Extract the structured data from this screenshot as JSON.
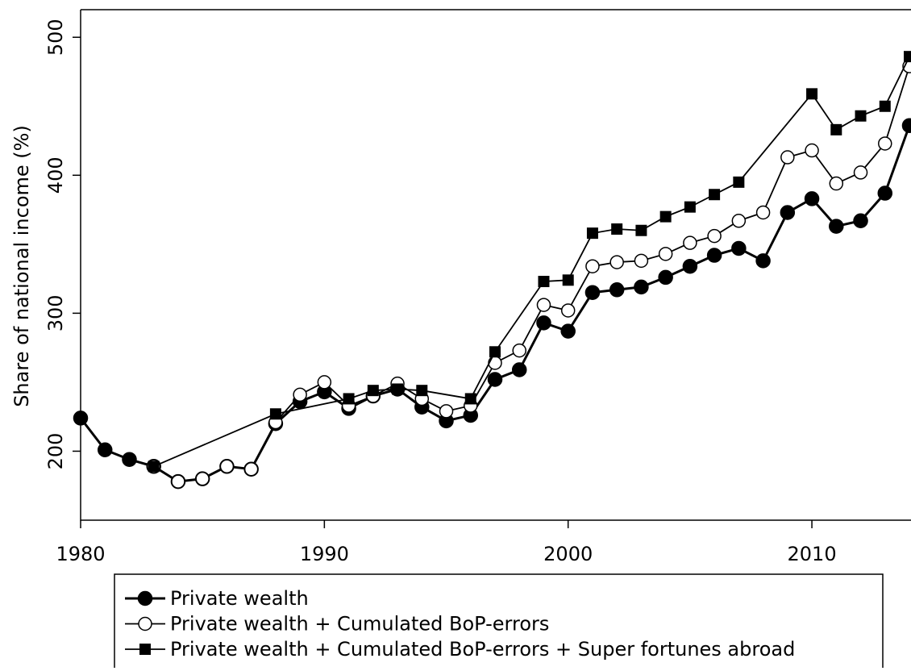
{
  "chart_data": {
    "type": "line",
    "y_label": "Share of national income (%)",
    "xlim": [
      1980,
      2014
    ],
    "xticks": [
      1980,
      1990,
      2000,
      2010
    ],
    "ylim": [
      150,
      520
    ],
    "yticks": [
      200,
      300,
      400,
      500
    ],
    "series": [
      {
        "name": "Private wealth",
        "color": "#000000",
        "marker": "filled-circle",
        "x": [
          1980,
          1981,
          1982,
          1983,
          1984,
          1985,
          1986,
          1987,
          1988,
          1989,
          1990,
          1991,
          1992,
          1993,
          1994,
          1995,
          1996,
          1997,
          1998,
          1999,
          2000,
          2001,
          2002,
          2003,
          2004,
          2005,
          2006,
          2007,
          2008,
          2009,
          2010,
          2011,
          2012,
          2013,
          2014
        ],
        "values": [
          224,
          201,
          194,
          189,
          178,
          180,
          189,
          187,
          220,
          236,
          243,
          231,
          240,
          245,
          232,
          222,
          226,
          252,
          259,
          293,
          287,
          315,
          317,
          319,
          326,
          334,
          342,
          347,
          338,
          373,
          383,
          363,
          367,
          387,
          436
        ]
      },
      {
        "name": "Private wealth + Cumulated BoP-errors",
        "color": "#000000",
        "marker": "open-circle",
        "x": [
          1983,
          1984,
          1985,
          1986,
          1987,
          1988,
          1989,
          1990,
          1991,
          1992,
          1993,
          1994,
          1995,
          1996,
          1997,
          1998,
          1999,
          2000,
          2001,
          2002,
          2003,
          2004,
          2005,
          2006,
          2007,
          2008,
          2009,
          2010,
          2011,
          2012,
          2013,
          2014
        ],
        "values": [
          189,
          178,
          180,
          189,
          187,
          221,
          241,
          250,
          233,
          240,
          249,
          238,
          229,
          233,
          264,
          273,
          306,
          302,
          334,
          337,
          338,
          343,
          351,
          356,
          367,
          373,
          413,
          418,
          394,
          402,
          423,
          479
        ]
      },
      {
        "name": "Private wealth + Cumulated BoP-errors + Super fortunes abroad",
        "color": "#000000",
        "marker": "square",
        "x": [
          1983,
          1988,
          1991,
          1992,
          1993,
          1994,
          1996,
          1997,
          1999,
          2000,
          2001,
          2002,
          2003,
          2004,
          2005,
          2006,
          2007,
          2010,
          2011,
          2012,
          2013,
          2014
        ],
        "values": [
          189,
          227,
          238,
          244,
          245,
          244,
          238,
          272,
          323,
          324,
          358,
          361,
          360,
          370,
          377,
          386,
          395,
          459,
          433,
          443,
          450,
          486
        ]
      }
    ]
  }
}
